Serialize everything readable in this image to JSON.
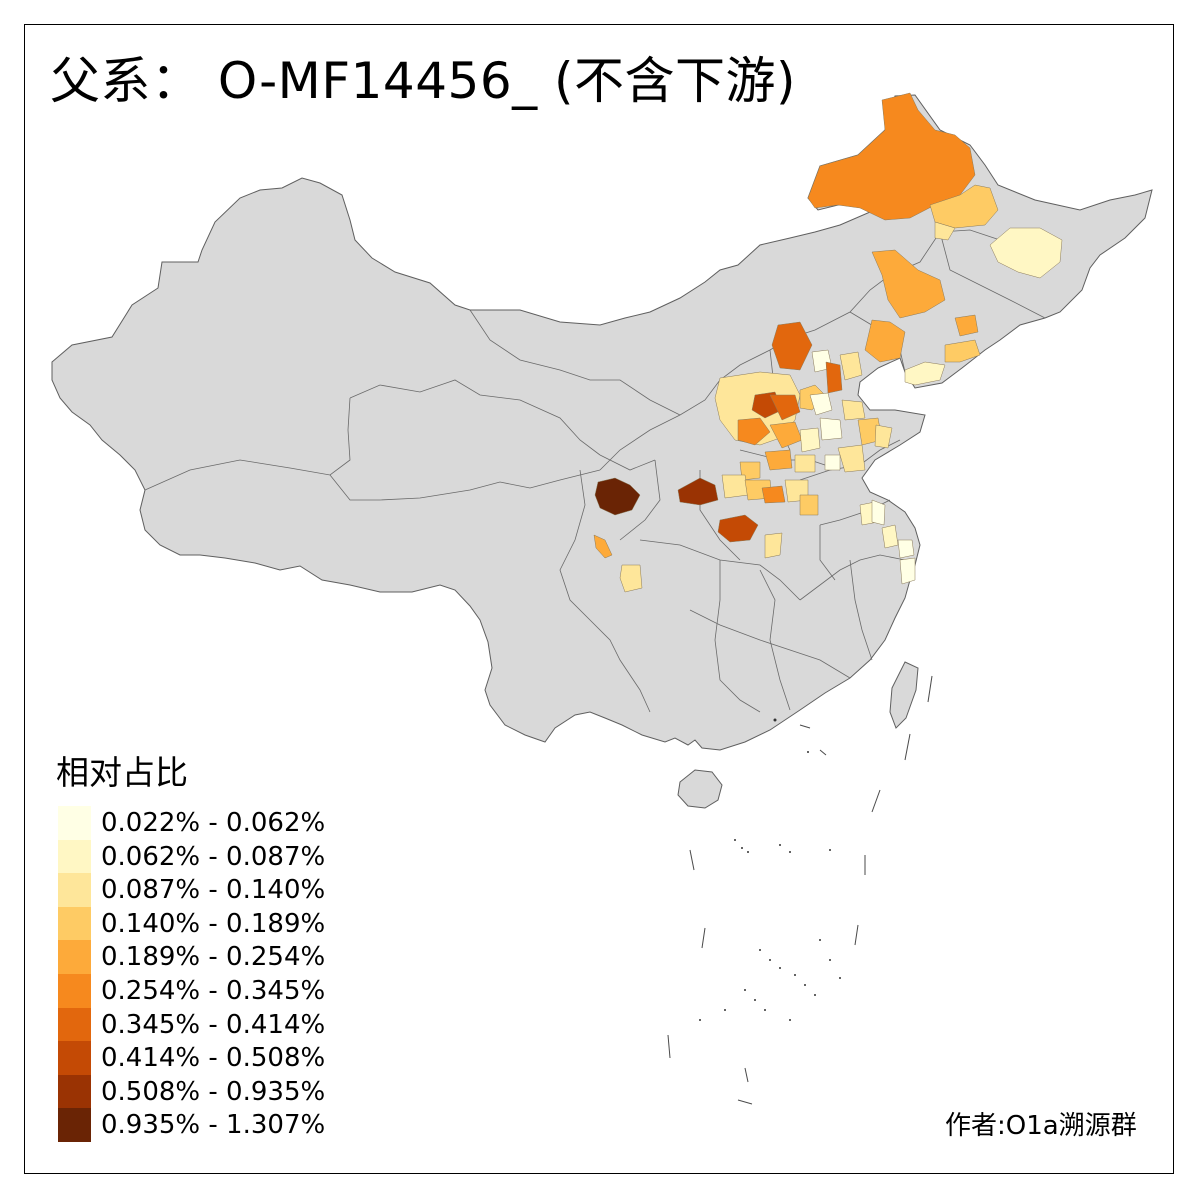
{
  "title": "父系：  O-MF14456_ (不含下游)",
  "legend": {
    "title": "相对占比",
    "items": [
      {
        "label": "0.022% - 0.062%",
        "color": "#FFFFE5"
      },
      {
        "label": "0.062% - 0.087%",
        "color": "#FFF7C4"
      },
      {
        "label": "0.087% - 0.140%",
        "color": "#FEE69A"
      },
      {
        "label": "0.140% - 0.189%",
        "color": "#FECB64"
      },
      {
        "label": "0.189% - 0.254%",
        "color": "#FDAA3A"
      },
      {
        "label": "0.254% - 0.345%",
        "color": "#F6891E"
      },
      {
        "label": "0.345% - 0.414%",
        "color": "#E2670D"
      },
      {
        "label": "0.414% - 0.508%",
        "color": "#C44A05"
      },
      {
        "label": "0.508% - 0.935%",
        "color": "#9A3303"
      },
      {
        "label": "0.935% - 1.307%",
        "color": "#6A2405"
      }
    ]
  },
  "author": "作者:O1a溯源群",
  "map_colors": {
    "base": "#D9D9D9",
    "border": "#5F5F5F"
  }
}
